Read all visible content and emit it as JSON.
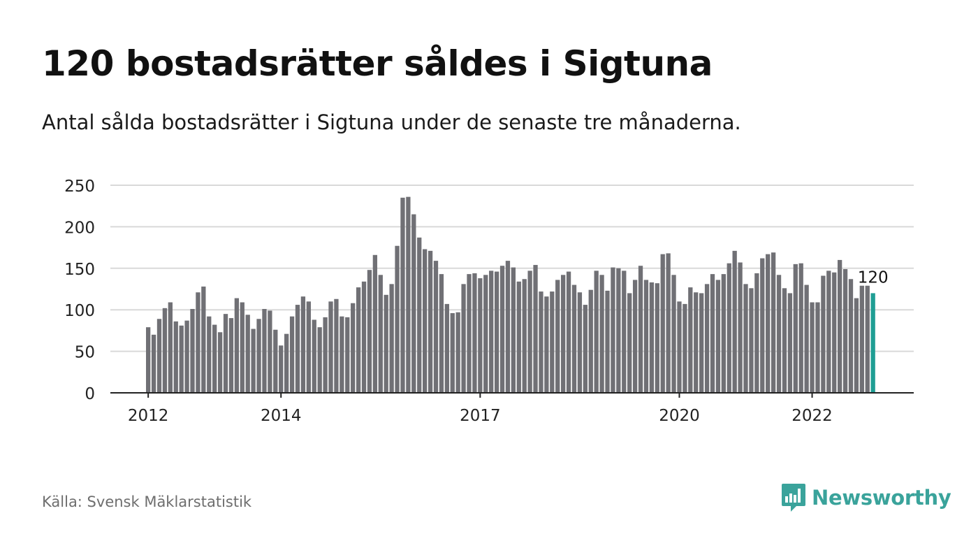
{
  "title": "120 bostadsrätter såldes i Sigtuna",
  "subtitle": "Antal sålda bostadsrätter i Sigtuna under de senaste tre månaderna.",
  "source": "Källa: Svensk Mäklarstatistik",
  "brand": {
    "name": "Newsworthy",
    "color": "#3aa39b",
    "icon": "newsworthy-logo-icon"
  },
  "colors": {
    "bar": "#707075",
    "highlight": "#1f9e94",
    "grid": "#d9d9d9",
    "axis": "#222222"
  },
  "chart_data": {
    "type": "bar",
    "title": "120 bostadsrätter såldes i Sigtuna",
    "subtitle": "Antal sålda bostadsrätter i Sigtuna under de senaste tre månaderna.",
    "xlabel": "",
    "ylabel": "",
    "ylim": [
      0,
      250
    ],
    "yticks": [
      0,
      50,
      100,
      150,
      200,
      250
    ],
    "xticks": [
      {
        "label": "2012",
        "index": 0
      },
      {
        "label": "2014",
        "index": 24
      },
      {
        "label": "2017",
        "index": 60
      },
      {
        "label": "2020",
        "index": 96
      },
      {
        "label": "2022",
        "index": 120
      }
    ],
    "grid": true,
    "last_value_label": "120",
    "values": [
      79,
      70,
      89,
      102,
      109,
      86,
      81,
      87,
      101,
      121,
      128,
      92,
      82,
      73,
      95,
      90,
      114,
      109,
      94,
      77,
      89,
      101,
      99,
      76,
      57,
      71,
      92,
      106,
      116,
      110,
      88,
      79,
      91,
      110,
      113,
      92,
      91,
      108,
      127,
      134,
      148,
      166,
      142,
      118,
      131,
      177,
      235,
      236,
      215,
      187,
      173,
      171,
      159,
      143,
      107,
      96,
      97,
      131,
      143,
      144,
      138,
      142,
      147,
      146,
      153,
      159,
      151,
      134,
      137,
      147,
      154,
      122,
      116,
      122,
      136,
      142,
      146,
      130,
      121,
      106,
      124,
      147,
      142,
      123,
      151,
      150,
      147,
      120,
      136,
      153,
      136,
      133,
      132,
      167,
      168,
      142,
      110,
      107,
      127,
      121,
      120,
      131,
      143,
      136,
      143,
      156,
      171,
      157,
      131,
      126,
      144,
      162,
      167,
      169,
      142,
      126,
      120,
      155,
      156,
      130,
      109,
      109,
      141,
      147,
      145,
      160,
      149,
      137,
      114,
      129,
      129,
      120
    ]
  }
}
